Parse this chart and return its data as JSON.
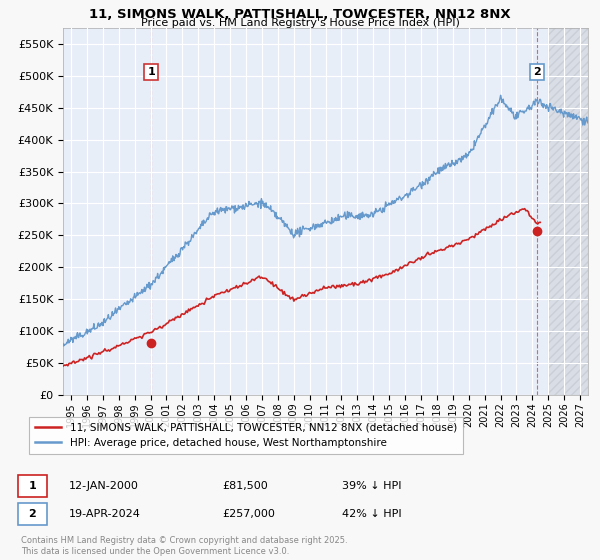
{
  "title": "11, SIMONS WALK, PATTISHALL, TOWCESTER, NN12 8NX",
  "subtitle": "Price paid vs. HM Land Registry's House Price Index (HPI)",
  "bg_color": "#f8f8f8",
  "plot_bg_color": "#e8eef8",
  "grid_color": "#ffffff",
  "hpi_color": "#6699cc",
  "price_color": "#cc2222",
  "marker_color": "#cc2222",
  "vline_color": "#dd4444",
  "sale1_x": 2000.04,
  "sale1_y": 81500,
  "sale2_x": 2024.3,
  "sale2_y": 257000,
  "legend_line1": "11, SIMONS WALK, PATTISHALL, TOWCESTER, NN12 8NX (detached house)",
  "legend_line2": "HPI: Average price, detached house, West Northamptonshire",
  "sale1_date": "12-JAN-2000",
  "sale1_price": "£81,500",
  "sale1_hpi": "39% ↓ HPI",
  "sale2_date": "19-APR-2024",
  "sale2_price": "£257,000",
  "sale2_hpi": "42% ↓ HPI",
  "copyright": "Contains HM Land Registry data © Crown copyright and database right 2025.\nThis data is licensed under the Open Government Licence v3.0.",
  "ylim": [
    0,
    575000
  ],
  "xlim_start": 1994.5,
  "xlim_end": 2027.5,
  "yticks": [
    0,
    50000,
    100000,
    150000,
    200000,
    250000,
    300000,
    350000,
    400000,
    450000,
    500000,
    550000
  ],
  "ytick_labels": [
    "£0",
    "£50K",
    "£100K",
    "£150K",
    "£200K",
    "£250K",
    "£300K",
    "£350K",
    "£400K",
    "£450K",
    "£500K",
    "£550K"
  ],
  "xticks": [
    1995,
    1996,
    1997,
    1998,
    1999,
    2000,
    2001,
    2002,
    2003,
    2004,
    2005,
    2006,
    2007,
    2008,
    2009,
    2010,
    2011,
    2012,
    2013,
    2014,
    2015,
    2016,
    2017,
    2018,
    2019,
    2020,
    2021,
    2022,
    2023,
    2024,
    2025,
    2026,
    2027
  ]
}
